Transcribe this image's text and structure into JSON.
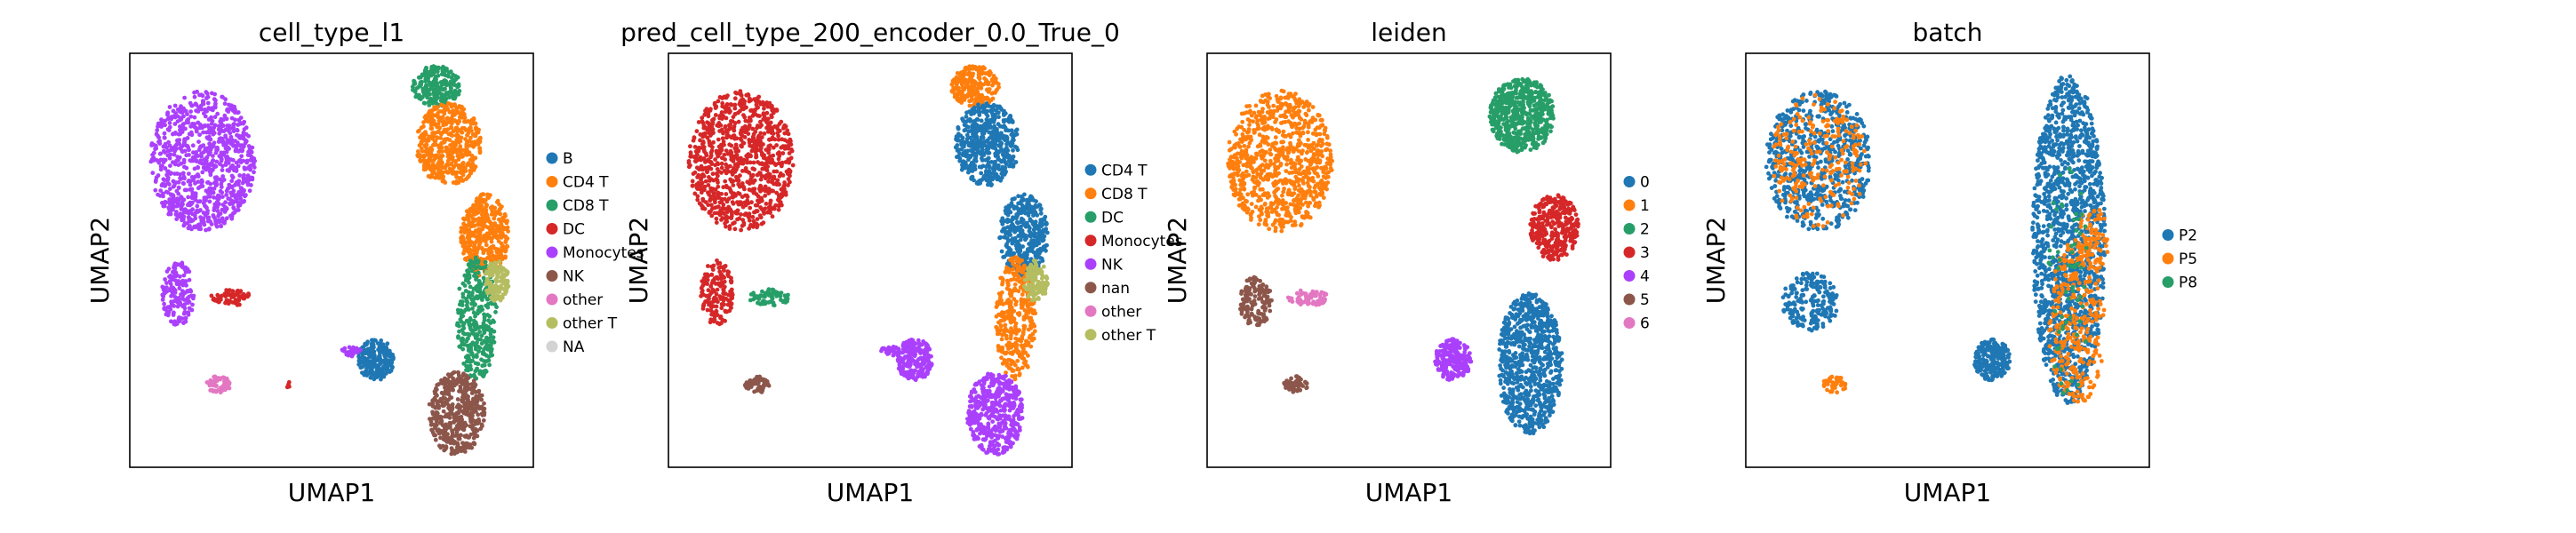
{
  "chart_data": [
    {
      "type": "scatter",
      "title": "cell_type_l1",
      "xlabel": "UMAP1",
      "ylabel": "UMAP2",
      "grid": false,
      "legend_position": "right",
      "series": [
        {
          "name": "B",
          "color": "#1f77b4"
        },
        {
          "name": "CD4 T",
          "color": "#ff7f0e"
        },
        {
          "name": "CD8 T",
          "color": "#279e68"
        },
        {
          "name": "DC",
          "color": "#d62728"
        },
        {
          "name": "Monocytes",
          "color": "#aa40fc"
        },
        {
          "name": "NK",
          "color": "#8c564b"
        },
        {
          "name": "other",
          "color": "#e377c2"
        },
        {
          "name": "other T",
          "color": "#b5bd61"
        },
        {
          "name": "NA",
          "color": "#d3d3d3"
        }
      ],
      "regions": [
        {
          "series": "Monocytes",
          "cx": 0.18,
          "cy": 0.74,
          "rx": 0.13,
          "ry": 0.17,
          "n": 900
        },
        {
          "series": "Monocytes",
          "cx": 0.12,
          "cy": 0.42,
          "rx": 0.04,
          "ry": 0.08,
          "n": 160
        },
        {
          "series": "DC",
          "cx": 0.25,
          "cy": 0.41,
          "rx": 0.05,
          "ry": 0.02,
          "n": 70
        },
        {
          "series": "other",
          "cx": 0.22,
          "cy": 0.2,
          "rx": 0.03,
          "ry": 0.02,
          "n": 60
        },
        {
          "series": "DC",
          "cx": 0.39,
          "cy": 0.2,
          "rx": 0.01,
          "ry": 0.008,
          "n": 6
        },
        {
          "series": "B",
          "cx": 0.61,
          "cy": 0.26,
          "rx": 0.045,
          "ry": 0.05,
          "n": 220
        },
        {
          "series": "Monocytes",
          "cx": 0.55,
          "cy": 0.28,
          "rx": 0.025,
          "ry": 0.012,
          "n": 30
        },
        {
          "series": "CD8 T",
          "cx": 0.76,
          "cy": 0.92,
          "rx": 0.06,
          "ry": 0.05,
          "n": 220
        },
        {
          "series": "CD4 T",
          "cx": 0.79,
          "cy": 0.78,
          "rx": 0.08,
          "ry": 0.1,
          "n": 500
        },
        {
          "series": "CD4 T",
          "cx": 0.88,
          "cy": 0.56,
          "rx": 0.06,
          "ry": 0.1,
          "n": 400
        },
        {
          "series": "CD8 T",
          "cx": 0.86,
          "cy": 0.36,
          "rx": 0.05,
          "ry": 0.15,
          "n": 350
        },
        {
          "series": "other T",
          "cx": 0.91,
          "cy": 0.45,
          "rx": 0.03,
          "ry": 0.05,
          "n": 120
        },
        {
          "series": "NK",
          "cx": 0.81,
          "cy": 0.13,
          "rx": 0.07,
          "ry": 0.1,
          "n": 450
        }
      ]
    },
    {
      "type": "scatter",
      "title": "pred_cell_type_200_encoder_0.0_True_0",
      "xlabel": "UMAP1",
      "ylabel": "UMAP2",
      "grid": false,
      "legend_position": "right",
      "series": [
        {
          "name": "CD4 T",
          "color": "#1f77b4"
        },
        {
          "name": "CD8 T",
          "color": "#ff7f0e"
        },
        {
          "name": "DC",
          "color": "#279e68"
        },
        {
          "name": "Monocytes",
          "color": "#d62728"
        },
        {
          "name": "NK",
          "color": "#aa40fc"
        },
        {
          "name": "nan",
          "color": "#8c564b"
        },
        {
          "name": "other",
          "color": "#e377c2"
        },
        {
          "name": "other T",
          "color": "#b5bd61"
        }
      ],
      "regions": [
        {
          "series": "Monocytes",
          "cx": 0.18,
          "cy": 0.74,
          "rx": 0.13,
          "ry": 0.17,
          "n": 900
        },
        {
          "series": "Monocytes",
          "cx": 0.12,
          "cy": 0.42,
          "rx": 0.04,
          "ry": 0.08,
          "n": 160
        },
        {
          "series": "DC",
          "cx": 0.25,
          "cy": 0.41,
          "rx": 0.05,
          "ry": 0.02,
          "n": 70
        },
        {
          "series": "nan",
          "cx": 0.22,
          "cy": 0.2,
          "rx": 0.03,
          "ry": 0.02,
          "n": 60
        },
        {
          "series": "NK",
          "cx": 0.61,
          "cy": 0.26,
          "rx": 0.045,
          "ry": 0.05,
          "n": 220
        },
        {
          "series": "NK",
          "cx": 0.55,
          "cy": 0.28,
          "rx": 0.025,
          "ry": 0.012,
          "n": 30
        },
        {
          "series": "CD8 T",
          "cx": 0.76,
          "cy": 0.92,
          "rx": 0.06,
          "ry": 0.05,
          "n": 220
        },
        {
          "series": "CD4 T",
          "cx": 0.79,
          "cy": 0.78,
          "rx": 0.08,
          "ry": 0.1,
          "n": 500
        },
        {
          "series": "CD4 T",
          "cx": 0.88,
          "cy": 0.56,
          "rx": 0.06,
          "ry": 0.1,
          "n": 400
        },
        {
          "series": "CD8 T",
          "cx": 0.86,
          "cy": 0.36,
          "rx": 0.05,
          "ry": 0.15,
          "n": 350
        },
        {
          "series": "other T",
          "cx": 0.91,
          "cy": 0.45,
          "rx": 0.03,
          "ry": 0.05,
          "n": 120
        },
        {
          "series": "NK",
          "cx": 0.81,
          "cy": 0.13,
          "rx": 0.07,
          "ry": 0.1,
          "n": 450
        }
      ]
    },
    {
      "type": "scatter",
      "title": "leiden",
      "xlabel": "UMAP1",
      "ylabel": "UMAP2",
      "grid": false,
      "legend_position": "right",
      "series": [
        {
          "name": "0",
          "color": "#1f77b4"
        },
        {
          "name": "1",
          "color": "#ff7f0e"
        },
        {
          "name": "2",
          "color": "#279e68"
        },
        {
          "name": "3",
          "color": "#d62728"
        },
        {
          "name": "4",
          "color": "#aa40fc"
        },
        {
          "name": "5",
          "color": "#8c564b"
        },
        {
          "name": "6",
          "color": "#e377c2"
        }
      ],
      "regions": [
        {
          "series": "1",
          "cx": 0.18,
          "cy": 0.74,
          "rx": 0.13,
          "ry": 0.17,
          "n": 900
        },
        {
          "series": "5",
          "cx": 0.12,
          "cy": 0.4,
          "rx": 0.04,
          "ry": 0.06,
          "n": 140
        },
        {
          "series": "6",
          "cx": 0.25,
          "cy": 0.41,
          "rx": 0.05,
          "ry": 0.02,
          "n": 70
        },
        {
          "series": "5",
          "cx": 0.22,
          "cy": 0.2,
          "rx": 0.03,
          "ry": 0.02,
          "n": 60
        },
        {
          "series": "4",
          "cx": 0.61,
          "cy": 0.26,
          "rx": 0.045,
          "ry": 0.05,
          "n": 220
        },
        {
          "series": "2",
          "cx": 0.78,
          "cy": 0.85,
          "rx": 0.08,
          "ry": 0.09,
          "n": 600
        },
        {
          "series": "3",
          "cx": 0.86,
          "cy": 0.58,
          "rx": 0.06,
          "ry": 0.08,
          "n": 350
        },
        {
          "series": "0",
          "cx": 0.8,
          "cy": 0.25,
          "rx": 0.08,
          "ry": 0.17,
          "n": 800
        }
      ]
    },
    {
      "type": "scatter",
      "title": "batch",
      "xlabel": "UMAP1",
      "ylabel": "UMAP2",
      "grid": false,
      "legend_position": "right",
      "series": [
        {
          "name": "P2",
          "color": "#1f77b4"
        },
        {
          "name": "P5",
          "color": "#ff7f0e"
        },
        {
          "name": "P8",
          "color": "#279e68"
        }
      ],
      "regions": [
        {
          "series": "P2",
          "cx": 0.18,
          "cy": 0.74,
          "rx": 0.13,
          "ry": 0.17,
          "n": 700
        },
        {
          "series": "P5",
          "cx": 0.18,
          "cy": 0.74,
          "rx": 0.12,
          "ry": 0.16,
          "n": 250
        },
        {
          "series": "P2",
          "cx": 0.16,
          "cy": 0.4,
          "rx": 0.07,
          "ry": 0.07,
          "n": 200
        },
        {
          "series": "P5",
          "cx": 0.22,
          "cy": 0.2,
          "rx": 0.03,
          "ry": 0.02,
          "n": 40
        },
        {
          "series": "P2",
          "cx": 0.61,
          "cy": 0.26,
          "rx": 0.045,
          "ry": 0.05,
          "n": 220
        },
        {
          "series": "P2",
          "cx": 0.8,
          "cy": 0.55,
          "rx": 0.09,
          "ry": 0.4,
          "n": 1500
        },
        {
          "series": "P5",
          "cx": 0.82,
          "cy": 0.35,
          "rx": 0.07,
          "ry": 0.2,
          "n": 300
        },
        {
          "series": "P5",
          "cx": 0.86,
          "cy": 0.55,
          "rx": 0.04,
          "ry": 0.08,
          "n": 80
        },
        {
          "series": "P8",
          "cx": 0.8,
          "cy": 0.45,
          "rx": 0.05,
          "ry": 0.3,
          "n": 60
        }
      ]
    }
  ]
}
